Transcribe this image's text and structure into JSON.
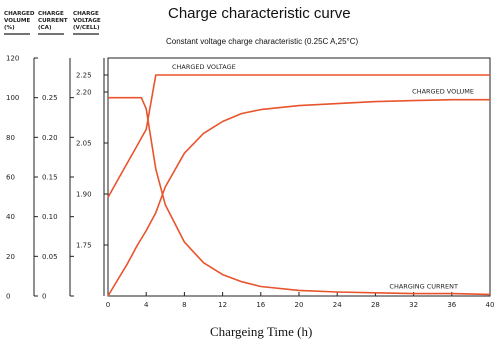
{
  "chart_data": {
    "type": "line",
    "title": "Charge characteristic curve",
    "subtitle": "Constant voltage charge characteristic (0.25C A,25°C)",
    "xlabel": "Chargeing Time (h)",
    "x_ticks": [
      0,
      4,
      8,
      12,
      16,
      20,
      24,
      28,
      32,
      36,
      40
    ],
    "xlim": [
      0,
      40
    ],
    "grid": false,
    "axes": [
      {
        "key": "charged",
        "header": [
          "CHARGED",
          "VOLUME",
          "(%)"
        ],
        "ticks": [
          0,
          20,
          40,
          60,
          80,
          100,
          120
        ],
        "range": [
          0,
          120
        ]
      },
      {
        "key": "current",
        "header": [
          "CHARGE",
          "CURRENT",
          "(CA)"
        ],
        "ticks": [
          0,
          0.05,
          0.1,
          0.15,
          0.2,
          0.25
        ],
        "tick_labels": [
          "0",
          "0.05",
          "0.10",
          "0.15",
          "0.20",
          "0.25"
        ],
        "range": [
          0,
          0.3
        ]
      },
      {
        "key": "voltage",
        "header": [
          "CHARGE",
          "VOLTAGE",
          "(V/CELL)"
        ],
        "ticks": [
          1.75,
          1.9,
          2.05,
          2.2,
          2.25
        ],
        "tick_labels": [
          "1.75",
          "1.90",
          "2.05",
          "2.20",
          "2.25"
        ],
        "range": [
          1.6,
          2.3
        ]
      }
    ],
    "series": [
      {
        "name": "CHARGED VOLUME",
        "axis": "charged",
        "x": [
          0,
          1,
          2,
          3,
          4,
          5,
          6,
          8,
          10,
          12,
          14,
          16,
          20,
          24,
          28,
          32,
          36,
          40
        ],
        "values": [
          0,
          8,
          16,
          25,
          33,
          42,
          55,
          72,
          82,
          88,
          92,
          94,
          96,
          97,
          98,
          98.5,
          99,
          99
        ]
      },
      {
        "name": "CHARGE VOLTAGE",
        "axis": "voltage",
        "x": [
          0,
          1,
          2,
          3,
          4,
          5,
          40
        ],
        "values": [
          1.89,
          1.94,
          1.99,
          2.04,
          2.09,
          2.25,
          2.25
        ]
      },
      {
        "name": "CHARGING CURRENT",
        "axis": "current",
        "x": [
          0,
          3.5,
          4,
          5,
          6,
          8,
          10,
          12,
          14,
          16,
          20,
          24,
          28,
          32,
          36,
          40
        ],
        "values": [
          0.25,
          0.25,
          0.236,
          0.16,
          0.115,
          0.068,
          0.042,
          0.027,
          0.018,
          0.012,
          0.007,
          0.005,
          0.004,
          0.003,
          0.003,
          0.002
        ]
      }
    ],
    "annotations": [
      {
        "text": "CHARGED VOLTAGE",
        "near": "voltage"
      },
      {
        "text": "CHARGED VOLUME",
        "near": "charged"
      },
      {
        "text": "CHARGING CURRENT",
        "near": "current"
      }
    ],
    "color": "#e8542c"
  }
}
